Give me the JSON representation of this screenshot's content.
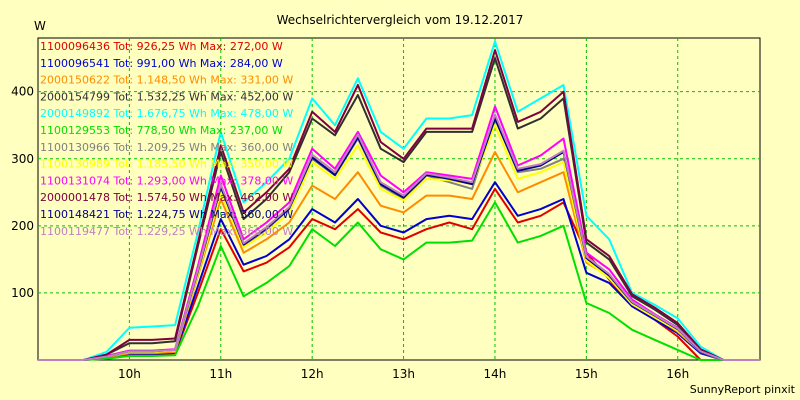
{
  "chart_data": {
    "type": "line",
    "title": "Wechselrichtervergleich vom 19.12.2017",
    "ylabel": "W",
    "xlabel": "",
    "ylim": [
      0,
      480
    ],
    "yticks": [
      100,
      200,
      300,
      400
    ],
    "xlim": [
      9.0,
      16.9
    ],
    "xticks": [
      10,
      11,
      12,
      13,
      14,
      15,
      16
    ],
    "xtick_labels": [
      "10h",
      "11h",
      "12h",
      "13h",
      "14h",
      "15h",
      "16h"
    ],
    "grid": true,
    "legend_position": "top-left",
    "x": [
      9.0,
      9.25,
      9.5,
      9.75,
      10.0,
      10.25,
      10.5,
      10.75,
      11.0,
      11.25,
      11.5,
      11.75,
      12.0,
      12.25,
      12.5,
      12.75,
      13.0,
      13.25,
      13.5,
      13.75,
      14.0,
      14.25,
      14.5,
      14.75,
      15.0,
      15.25,
      15.5,
      15.75,
      16.0,
      16.25,
      16.5,
      16.75,
      16.9
    ],
    "series": [
      {
        "name": "1100096436 Tot: 926,25 Wh Max: 272,00 W",
        "color": "#e00000",
        "values": [
          0,
          0,
          0,
          3,
          8,
          8,
          10,
          100,
          195,
          132,
          145,
          168,
          210,
          195,
          225,
          190,
          180,
          195,
          205,
          195,
          255,
          205,
          215,
          235,
          160,
          120,
          80,
          60,
          35,
          0,
          0,
          0,
          0
        ]
      },
      {
        "name": "1100096541 Tot: 991,00 Wh Max: 284,00 W",
        "color": "#0000d0",
        "values": [
          0,
          0,
          0,
          3,
          9,
          9,
          11,
          110,
          210,
          142,
          155,
          180,
          225,
          205,
          240,
          200,
          190,
          210,
          215,
          210,
          265,
          215,
          225,
          240,
          130,
          115,
          80,
          60,
          40,
          10,
          0,
          0,
          0
        ]
      },
      {
        "name": "2000150622 Tot: 1.148,50 Wh Max: 331,00 W",
        "color": "#ff8c00",
        "values": [
          0,
          0,
          0,
          4,
          10,
          10,
          12,
          125,
          240,
          160,
          180,
          205,
          260,
          240,
          280,
          230,
          220,
          245,
          245,
          240,
          310,
          250,
          265,
          280,
          145,
          125,
          85,
          65,
          42,
          12,
          0,
          0,
          0
        ]
      },
      {
        "name": "2000154799 Tot: 1.532,25 Wh Max: 452,00 W",
        "color": "#303030",
        "values": [
          0,
          0,
          0,
          8,
          25,
          25,
          28,
          170,
          310,
          210,
          240,
          280,
          360,
          335,
          395,
          315,
          295,
          340,
          340,
          340,
          450,
          345,
          360,
          390,
          175,
          150,
          95,
          75,
          52,
          15,
          0,
          0,
          0
        ]
      },
      {
        "name": "2000149892 Tot: 1.676,75 Wh Max: 478,00 W",
        "color": "#00ffff",
        "values": [
          0,
          0,
          0,
          12,
          48,
          50,
          52,
          190,
          340,
          235,
          265,
          300,
          390,
          350,
          420,
          340,
          315,
          360,
          360,
          365,
          475,
          370,
          390,
          410,
          215,
          180,
          100,
          82,
          62,
          20,
          0,
          0,
          0
        ]
      },
      {
        "name": "1100129553 Tot: 778,50 Wh Max: 237,00 W",
        "color": "#00e000",
        "values": [
          0,
          0,
          0,
          2,
          6,
          6,
          7,
          80,
          170,
          95,
          115,
          140,
          195,
          170,
          205,
          165,
          150,
          175,
          175,
          178,
          235,
          175,
          185,
          200,
          85,
          70,
          45,
          30,
          15,
          0,
          0,
          0,
          0
        ]
      },
      {
        "name": "1100130966 Tot: 1.209,25 Wh Max: 360,00 W",
        "color": "#808080",
        "values": [
          0,
          0,
          0,
          5,
          12,
          12,
          14,
          130,
          255,
          170,
          195,
          225,
          300,
          275,
          330,
          260,
          240,
          275,
          265,
          255,
          360,
          280,
          285,
          300,
          150,
          125,
          85,
          65,
          45,
          12,
          0,
          0,
          0
        ]
      },
      {
        "name": "1100130989 Tot: 1.185,50 Wh Max: 350,00 W",
        "color": "#ffff00",
        "values": [
          0,
          0,
          0,
          5,
          12,
          12,
          14,
          128,
          250,
          168,
          190,
          220,
          295,
          270,
          320,
          255,
          238,
          270,
          268,
          262,
          350,
          270,
          280,
          295,
          148,
          122,
          83,
          63,
          44,
          12,
          0,
          0,
          0
        ]
      },
      {
        "name": "1100131074 Tot: 1.293,00 Wh Max: 378,00 W",
        "color": "#ff00ff",
        "values": [
          0,
          0,
          0,
          6,
          14,
          14,
          16,
          140,
          275,
          180,
          205,
          235,
          315,
          285,
          340,
          275,
          250,
          280,
          275,
          270,
          378,
          290,
          305,
          330,
          160,
          135,
          90,
          68,
          48,
          14,
          0,
          0,
          0
        ]
      },
      {
        "name": "2000001478 Tot: 1.574,50 Wh Max: 462,00 W",
        "color": "#800040",
        "values": [
          0,
          0,
          0,
          8,
          30,
          30,
          32,
          175,
          320,
          220,
          250,
          285,
          370,
          340,
          410,
          325,
          300,
          345,
          345,
          345,
          462,
          355,
          370,
          400,
          180,
          155,
          98,
          78,
          55,
          16,
          0,
          0,
          0
        ]
      },
      {
        "name": "1100148421 Tot: 1.224,75 Wh Max: 360,00 W",
        "color": "#00008b",
        "values": [
          0,
          0,
          0,
          5,
          13,
          13,
          15,
          132,
          258,
          172,
          196,
          226,
          302,
          276,
          332,
          262,
          242,
          276,
          270,
          262,
          360,
          282,
          290,
          310,
          152,
          126,
          86,
          66,
          46,
          12,
          0,
          0,
          0
        ]
      },
      {
        "name": "1100119477 Tot: 1.229,25 Wh Max: 366,00 W",
        "color": "#c080c0",
        "values": [
          0,
          0,
          0,
          5,
          13,
          13,
          15,
          134,
          262,
          174,
          198,
          228,
          306,
          280,
          336,
          265,
          245,
          278,
          272,
          265,
          366,
          285,
          292,
          312,
          154,
          128,
          87,
          67,
          47,
          13,
          0,
          0,
          0
        ]
      }
    ]
  },
  "footer": "SunnyReport pinxit"
}
